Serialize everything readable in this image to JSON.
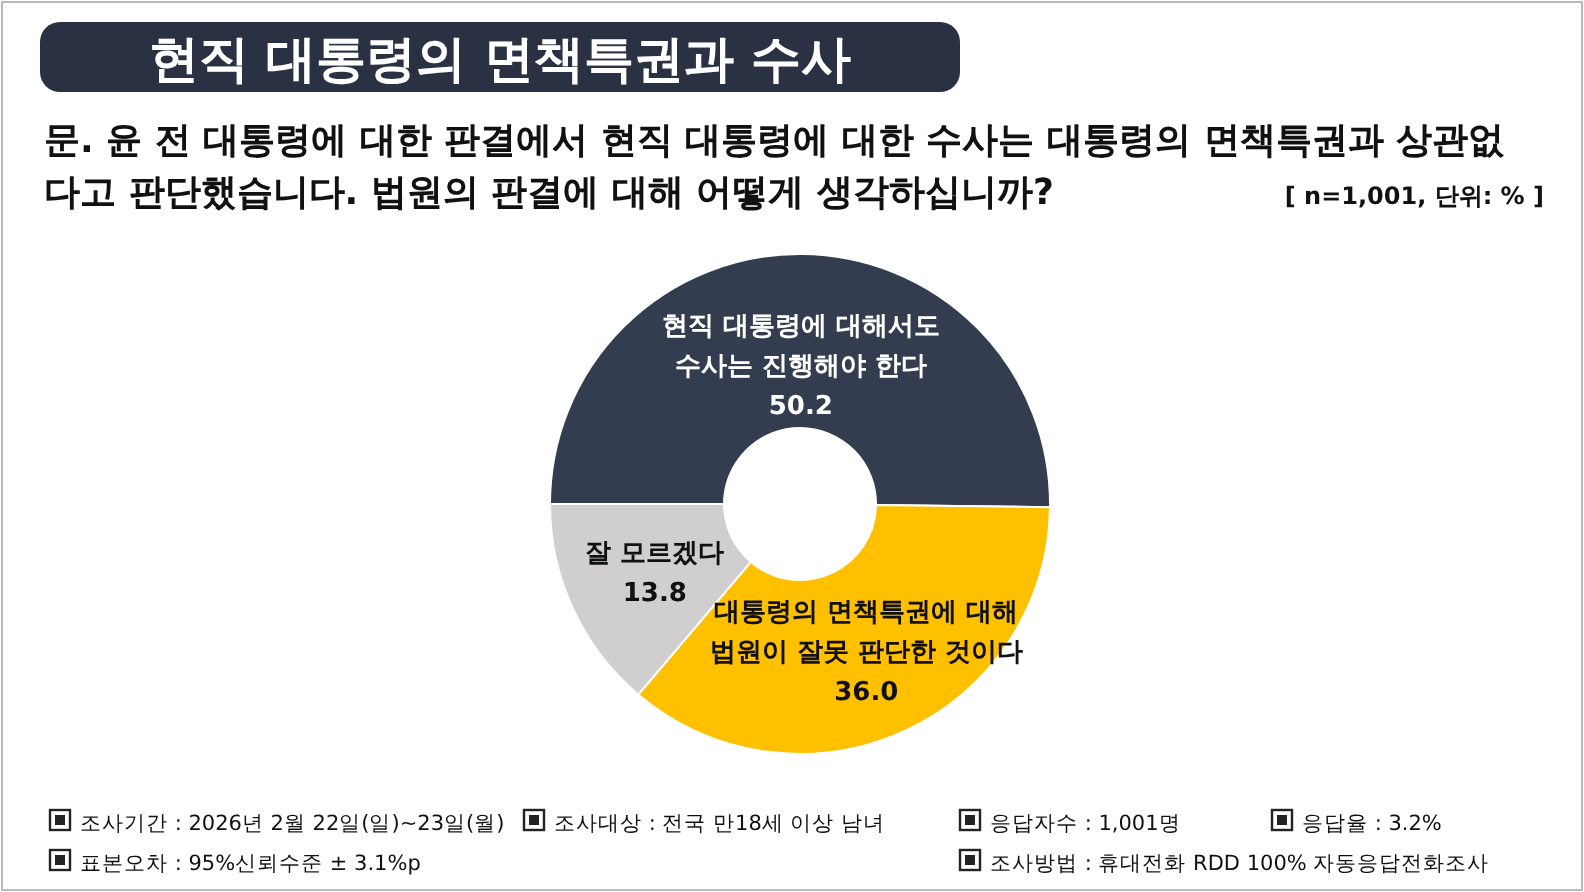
{
  "chart_data": {
    "type": "donut",
    "title": "현직 대통령의 면책특권과 수사",
    "subtitle": "문. 윤 전 대통령에 대한 판결에서 현직 대통령에 대한 수사는 대통령의 면책특권과 상관없\n다고 판단했습니다. 법원의 판결에 대해 어떻게 생각하십니까?",
    "categories": [
      "현직 대통령에 대해서도\n수사는 진행해야 한다",
      "대통령의 면책특권에 대해\n법원이 잘못 판단한 것이다",
      "잘 모르겠다"
    ],
    "values": [
      50.2,
      36.0,
      13.8
    ],
    "colors": [
      "#333d4f",
      "#ffc000",
      "#d0cece"
    ],
    "value_labels": [
      "50.2",
      "36.0",
      "13.8"
    ],
    "annotations": [
      "[ n=1,001, 단위: % ]",
      "조사기간 : 2026년 2월 22일(일)~23일(월)",
      "조사대상 : 전국 만18세 이상 남녀",
      "응답자수 : 1,001명",
      "응답율 : 3.2%",
      "표본오차 : 95%신뢰수준 ± 3.1%p",
      "조사방법 : 휴대전화 RDD 100% 자동응답전화조사"
    ]
  }
}
